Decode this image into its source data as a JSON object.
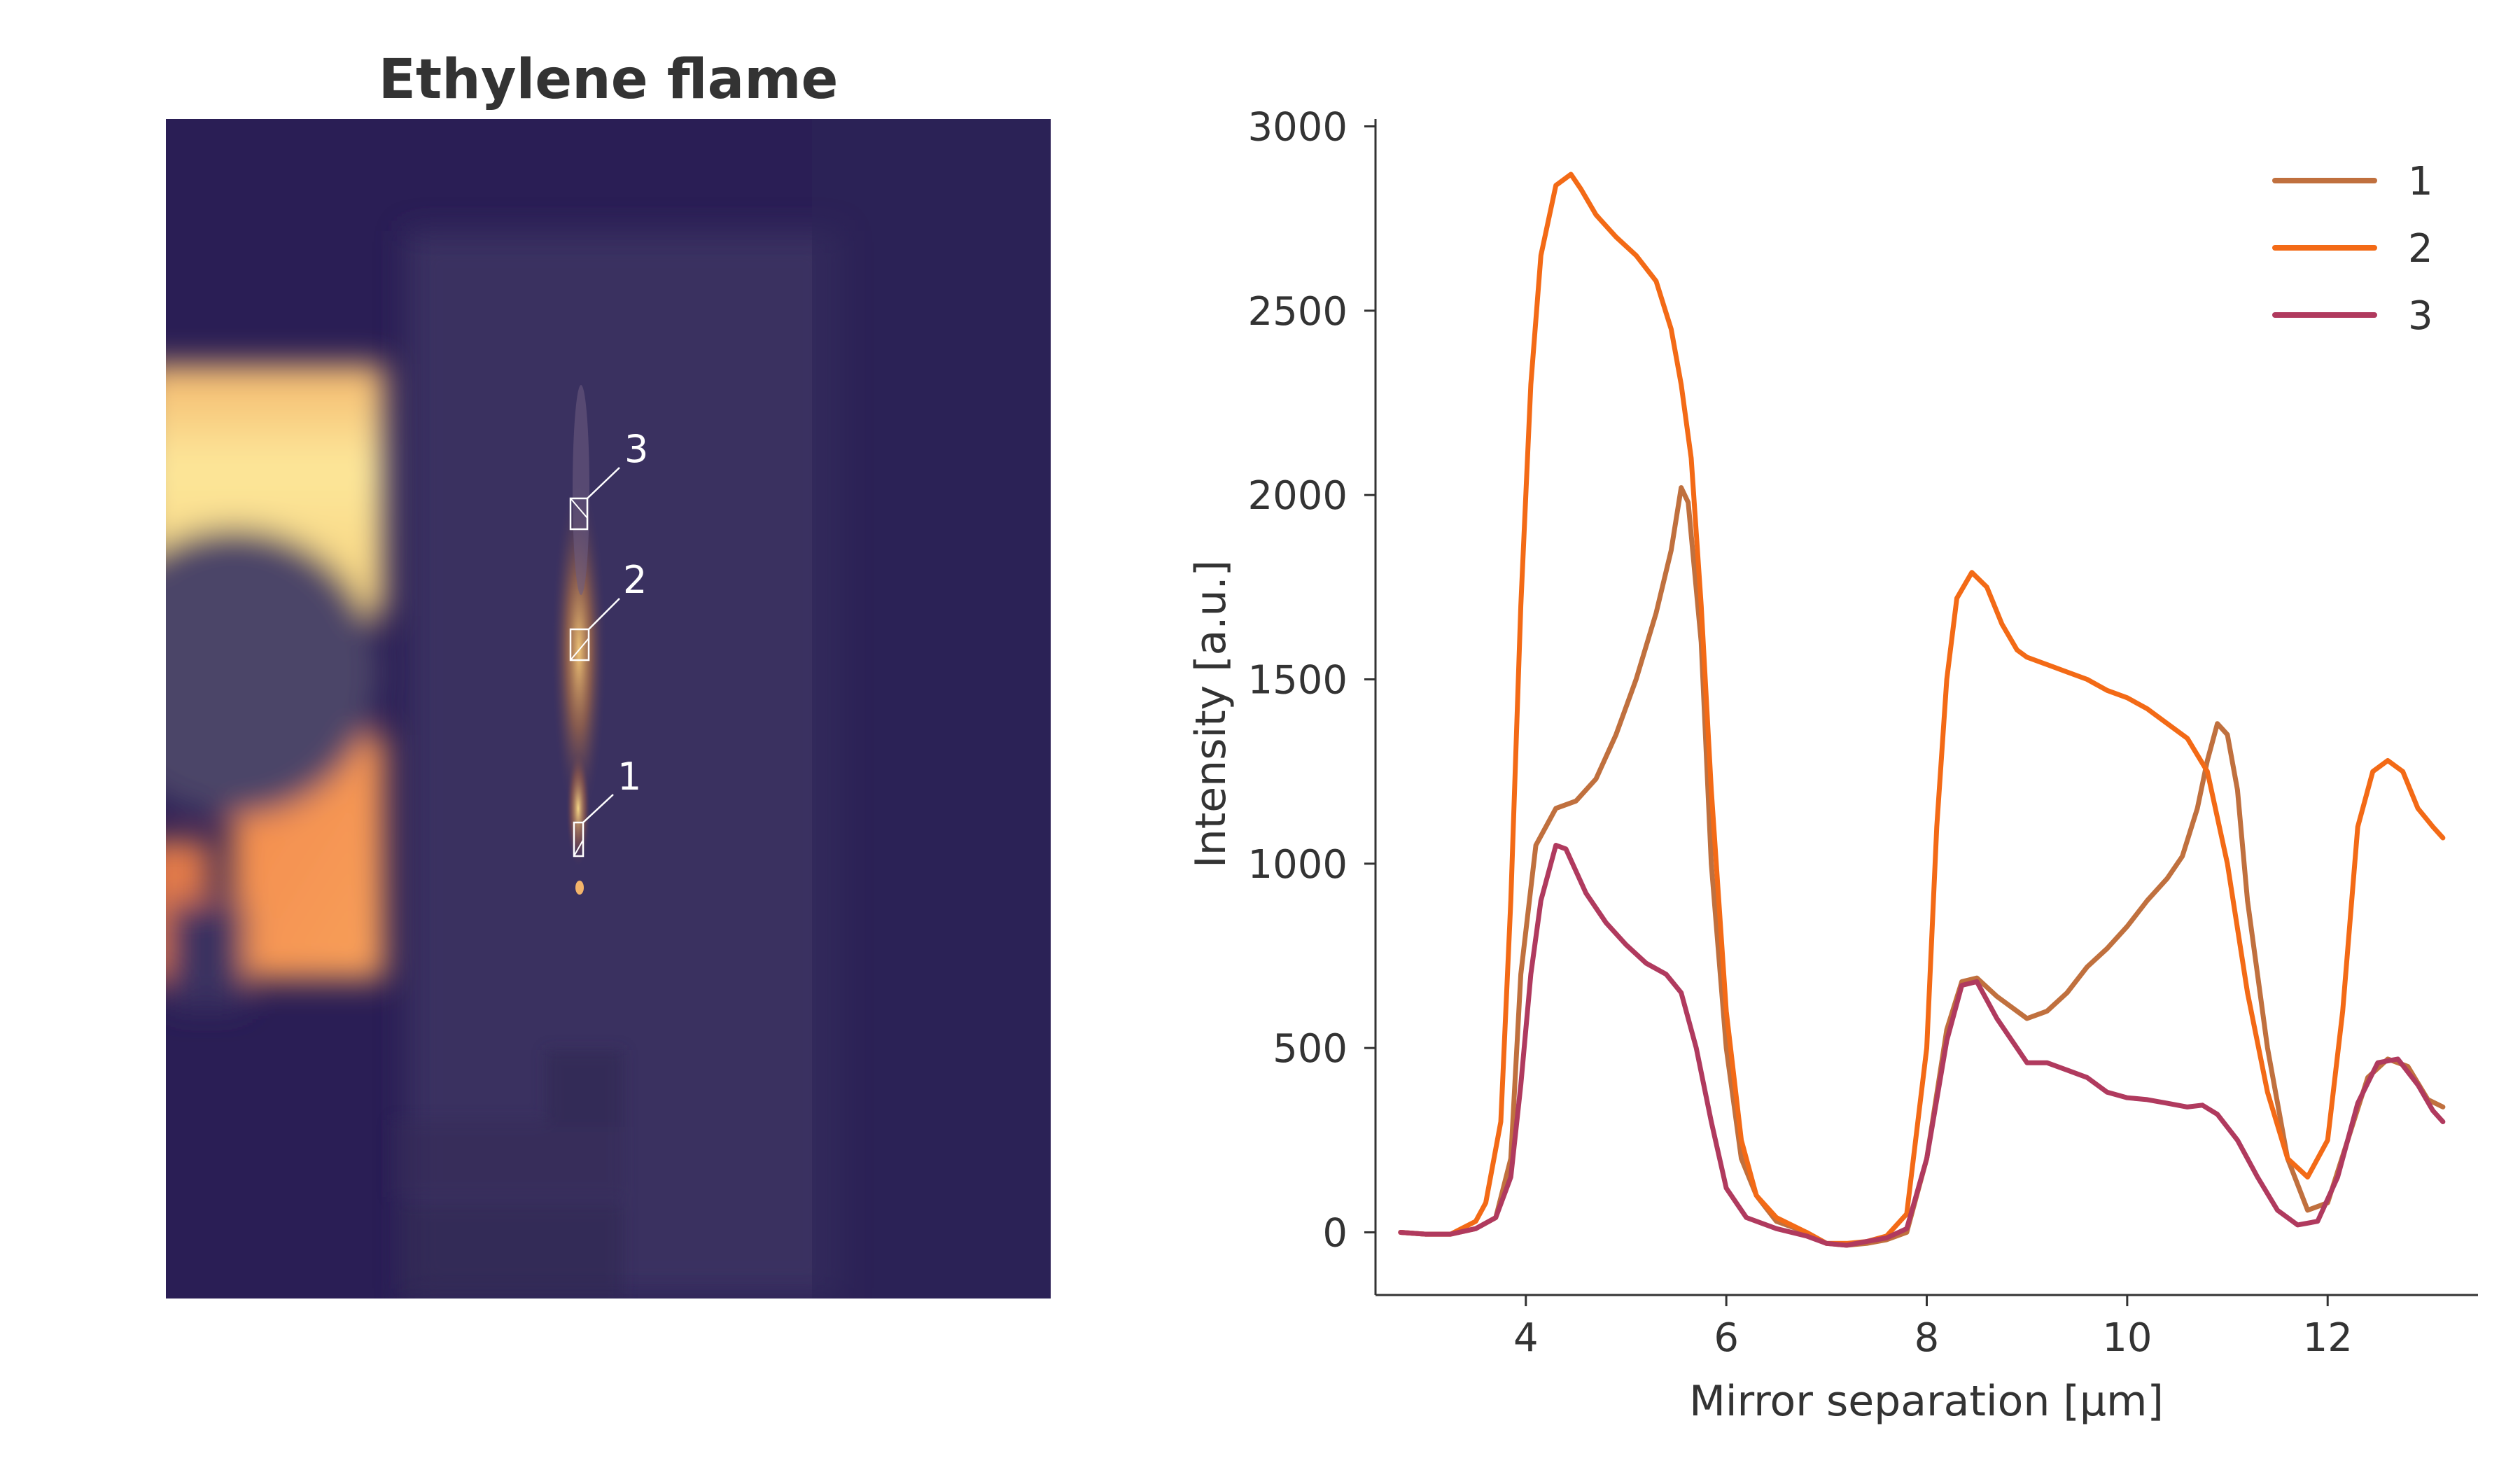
{
  "image_panel": {
    "title": "Ethylene flame",
    "markers": [
      {
        "label": "1"
      },
      {
        "label": "2"
      },
      {
        "label": "3"
      }
    ]
  },
  "chart_data": {
    "type": "line",
    "title": "",
    "xlabel": "Mirror separation [µm]",
    "ylabel": "Intensity [a.u.]",
    "xlim": [
      2.5,
      13.5
    ],
    "ylim": [
      -170,
      3020
    ],
    "xticks": [
      4,
      6,
      8,
      10,
      12
    ],
    "yticks": [
      0,
      500,
      1000,
      1500,
      2000,
      2500,
      3000
    ],
    "grid": false,
    "legend_position": "top-right",
    "series": [
      {
        "name": "1",
        "color": "#c0703e",
        "points": [
          [
            2.75,
            0
          ],
          [
            3.0,
            -5
          ],
          [
            3.25,
            -5
          ],
          [
            3.5,
            10
          ],
          [
            3.7,
            40
          ],
          [
            3.85,
            200
          ],
          [
            3.95,
            700
          ],
          [
            4.1,
            1050
          ],
          [
            4.3,
            1150
          ],
          [
            4.5,
            1170
          ],
          [
            4.7,
            1230
          ],
          [
            4.9,
            1350
          ],
          [
            5.1,
            1500
          ],
          [
            5.3,
            1680
          ],
          [
            5.45,
            1850
          ],
          [
            5.55,
            2020
          ],
          [
            5.62,
            1980
          ],
          [
            5.75,
            1600
          ],
          [
            5.85,
            1000
          ],
          [
            6.0,
            500
          ],
          [
            6.15,
            200
          ],
          [
            6.3,
            100
          ],
          [
            6.5,
            30
          ],
          [
            6.8,
            0
          ],
          [
            7.0,
            -30
          ],
          [
            7.2,
            -35
          ],
          [
            7.4,
            -30
          ],
          [
            7.6,
            -20
          ],
          [
            7.8,
            0
          ],
          [
            8.0,
            200
          ],
          [
            8.2,
            550
          ],
          [
            8.35,
            680
          ],
          [
            8.5,
            690
          ],
          [
            8.7,
            640
          ],
          [
            8.9,
            600
          ],
          [
            9.0,
            580
          ],
          [
            9.2,
            600
          ],
          [
            9.4,
            650
          ],
          [
            9.6,
            720
          ],
          [
            9.8,
            770
          ],
          [
            10.0,
            830
          ],
          [
            10.2,
            900
          ],
          [
            10.4,
            960
          ],
          [
            10.55,
            1020
          ],
          [
            10.7,
            1150
          ],
          [
            10.8,
            1280
          ],
          [
            10.9,
            1380
          ],
          [
            11.0,
            1350
          ],
          [
            11.1,
            1200
          ],
          [
            11.2,
            900
          ],
          [
            11.4,
            500
          ],
          [
            11.6,
            200
          ],
          [
            11.8,
            60
          ],
          [
            12.0,
            80
          ],
          [
            12.2,
            250
          ],
          [
            12.4,
            420
          ],
          [
            12.6,
            470
          ],
          [
            12.8,
            450
          ],
          [
            13.0,
            360
          ],
          [
            13.15,
            340
          ]
        ]
      },
      {
        "name": "2",
        "color": "#f36a16",
        "points": [
          [
            2.75,
            0
          ],
          [
            3.0,
            -5
          ],
          [
            3.25,
            -5
          ],
          [
            3.5,
            30
          ],
          [
            3.6,
            80
          ],
          [
            3.75,
            300
          ],
          [
            3.85,
            900
          ],
          [
            3.95,
            1700
          ],
          [
            4.05,
            2300
          ],
          [
            4.15,
            2650
          ],
          [
            4.3,
            2840
          ],
          [
            4.45,
            2870
          ],
          [
            4.55,
            2830
          ],
          [
            4.7,
            2760
          ],
          [
            4.9,
            2700
          ],
          [
            5.1,
            2650
          ],
          [
            5.3,
            2580
          ],
          [
            5.45,
            2450
          ],
          [
            5.55,
            2300
          ],
          [
            5.65,
            2100
          ],
          [
            5.75,
            1700
          ],
          [
            5.85,
            1200
          ],
          [
            6.0,
            600
          ],
          [
            6.15,
            250
          ],
          [
            6.3,
            100
          ],
          [
            6.5,
            40
          ],
          [
            6.8,
            0
          ],
          [
            7.0,
            -30
          ],
          [
            7.2,
            -30
          ],
          [
            7.4,
            -25
          ],
          [
            7.6,
            -10
          ],
          [
            7.8,
            50
          ],
          [
            8.0,
            500
          ],
          [
            8.1,
            1100
          ],
          [
            8.2,
            1500
          ],
          [
            8.3,
            1720
          ],
          [
            8.45,
            1790
          ],
          [
            8.6,
            1750
          ],
          [
            8.75,
            1650
          ],
          [
            8.9,
            1580
          ],
          [
            9.0,
            1560
          ],
          [
            9.2,
            1540
          ],
          [
            9.4,
            1520
          ],
          [
            9.6,
            1500
          ],
          [
            9.8,
            1470
          ],
          [
            10.0,
            1450
          ],
          [
            10.2,
            1420
          ],
          [
            10.4,
            1380
          ],
          [
            10.6,
            1340
          ],
          [
            10.8,
            1250
          ],
          [
            11.0,
            1000
          ],
          [
            11.2,
            650
          ],
          [
            11.4,
            380
          ],
          [
            11.6,
            200
          ],
          [
            11.8,
            150
          ],
          [
            12.0,
            250
          ],
          [
            12.15,
            600
          ],
          [
            12.3,
            1100
          ],
          [
            12.45,
            1250
          ],
          [
            12.6,
            1280
          ],
          [
            12.75,
            1250
          ],
          [
            12.9,
            1150
          ],
          [
            13.05,
            1100
          ],
          [
            13.15,
            1070
          ]
        ]
      },
      {
        "name": "3",
        "color": "#b03a5e",
        "points": [
          [
            2.75,
            0
          ],
          [
            3.0,
            -5
          ],
          [
            3.25,
            -5
          ],
          [
            3.5,
            10
          ],
          [
            3.7,
            40
          ],
          [
            3.85,
            150
          ],
          [
            3.95,
            400
          ],
          [
            4.05,
            700
          ],
          [
            4.15,
            900
          ],
          [
            4.3,
            1050
          ],
          [
            4.4,
            1040
          ],
          [
            4.6,
            920
          ],
          [
            4.8,
            840
          ],
          [
            5.0,
            780
          ],
          [
            5.2,
            730
          ],
          [
            5.4,
            700
          ],
          [
            5.55,
            650
          ],
          [
            5.7,
            500
          ],
          [
            5.85,
            300
          ],
          [
            6.0,
            120
          ],
          [
            6.2,
            40
          ],
          [
            6.5,
            10
          ],
          [
            6.8,
            -10
          ],
          [
            7.0,
            -30
          ],
          [
            7.2,
            -35
          ],
          [
            7.4,
            -25
          ],
          [
            7.6,
            -15
          ],
          [
            7.8,
            10
          ],
          [
            8.0,
            200
          ],
          [
            8.2,
            520
          ],
          [
            8.35,
            670
          ],
          [
            8.5,
            680
          ],
          [
            8.7,
            580
          ],
          [
            8.9,
            500
          ],
          [
            9.0,
            460
          ],
          [
            9.2,
            460
          ],
          [
            9.4,
            440
          ],
          [
            9.6,
            420
          ],
          [
            9.8,
            380
          ],
          [
            10.0,
            365
          ],
          [
            10.2,
            360
          ],
          [
            10.4,
            350
          ],
          [
            10.6,
            340
          ],
          [
            10.75,
            345
          ],
          [
            10.9,
            320
          ],
          [
            11.1,
            250
          ],
          [
            11.3,
            150
          ],
          [
            11.5,
            60
          ],
          [
            11.7,
            20
          ],
          [
            11.9,
            30
          ],
          [
            12.1,
            150
          ],
          [
            12.3,
            350
          ],
          [
            12.5,
            460
          ],
          [
            12.7,
            470
          ],
          [
            12.9,
            400
          ],
          [
            13.05,
            330
          ],
          [
            13.15,
            300
          ]
        ]
      }
    ]
  }
}
